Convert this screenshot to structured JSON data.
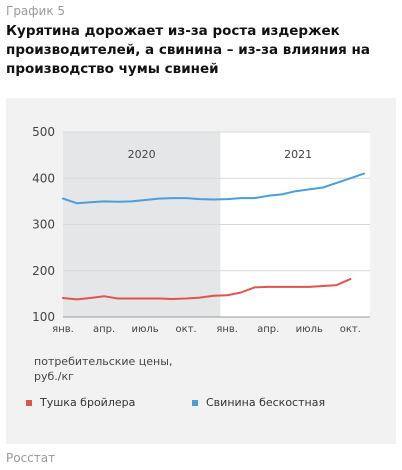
{
  "figure_label": "График 5",
  "headline": "Курятина дорожает из-за роста издержек производителей, а свинина – из-за влияния на производство чумы свиней",
  "source": "Росстат",
  "colors": {
    "broiler": "#e0544e",
    "pork": "#4a9fd9",
    "shade": "#e4e6e8"
  },
  "chart_data": {
    "type": "line",
    "title": "",
    "xlabel": "",
    "ylabel": "потребительские цены, руб./кг",
    "ylim": [
      100,
      500
    ],
    "yticks": [
      100,
      200,
      300,
      400,
      500
    ],
    "grid": true,
    "legend_position": "bottom",
    "shaded_period": "2020",
    "year_labels": [
      "2020",
      "2021"
    ],
    "x": [
      "янв. 2020",
      "фев. 2020",
      "мар. 2020",
      "апр. 2020",
      "май 2020",
      "июнь 2020",
      "июль 2020",
      "авг. 2020",
      "сент. 2020",
      "окт. 2020",
      "нояб. 2020",
      "дек. 2020",
      "янв. 2021",
      "фев. 2021",
      "мар. 2021",
      "апр. 2021",
      "май 2021",
      "июнь 2021",
      "июль 2021",
      "авг. 2021",
      "сент. 2021",
      "окт. 2021",
      "нояб. 2021"
    ],
    "x_tick_labels": [
      {
        "index": 0,
        "label": "янв."
      },
      {
        "index": 3,
        "label": "апр."
      },
      {
        "index": 6,
        "label": "июль"
      },
      {
        "index": 9,
        "label": "окт."
      },
      {
        "index": 12,
        "label": "янв."
      },
      {
        "index": 15,
        "label": "апр."
      },
      {
        "index": 18,
        "label": "июль"
      },
      {
        "index": 21,
        "label": "окт."
      }
    ],
    "series": [
      {
        "name": "Тушка бройлера",
        "color_key": "broiler",
        "values": [
          141,
          138,
          141,
          145,
          140,
          140,
          140,
          140,
          139,
          140,
          142,
          146,
          147,
          153,
          164,
          165,
          165,
          165,
          165,
          167,
          169,
          182,
          null
        ]
      },
      {
        "name": "Свинина бескостная",
        "color_key": "pork",
        "values": [
          356,
          346,
          348,
          350,
          349,
          350,
          353,
          356,
          357,
          357,
          355,
          354,
          355,
          357,
          357,
          362,
          365,
          372,
          376,
          380,
          390,
          400,
          410
        ]
      }
    ]
  }
}
